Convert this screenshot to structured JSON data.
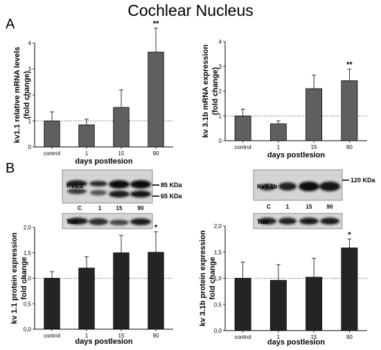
{
  "title": "Cochlear Nucleus",
  "panel_letters": {
    "a": "A",
    "b": "B"
  },
  "chart_data": [
    {
      "id": "kv11_mrna",
      "type": "bar",
      "categories": [
        "control",
        "1",
        "15",
        "90"
      ],
      "values": [
        1.0,
        0.85,
        1.52,
        3.65
      ],
      "error": [
        0.35,
        0.22,
        0.67,
        0.92
      ],
      "significance": [
        "",
        "",
        "",
        "**"
      ],
      "ylabel": [
        "kv1.1 relative mRNA levels",
        "(fold change)"
      ],
      "xlabel": "days postlesion",
      "ylim": [
        0,
        4
      ],
      "yticks": [
        "0",
        "1",
        "2",
        "3",
        "4"
      ],
      "reference_line": 1,
      "bar_color": "#5f5f5f"
    },
    {
      "id": "kv31b_mrna",
      "type": "bar",
      "categories": [
        "control",
        "1",
        "15",
        "90"
      ],
      "values": [
        1.0,
        0.68,
        2.1,
        2.42
      ],
      "error": [
        0.27,
        0.12,
        0.55,
        0.47
      ],
      "significance": [
        "",
        "",
        "",
        "**"
      ],
      "ylabel": [
        "kv 3.1b mRNA expression",
        "(fold change)"
      ],
      "xlabel": "days postlesion",
      "ylim": [
        0,
        4
      ],
      "yticks": [
        "0",
        "1",
        "2",
        "3",
        "4"
      ],
      "reference_line": 1,
      "bar_color": "#5f5f5f"
    },
    {
      "id": "kv11_protein",
      "type": "bar",
      "categories": [
        "control",
        "1",
        "15",
        "90"
      ],
      "values": [
        1.0,
        1.2,
        1.5,
        1.51
      ],
      "error": [
        0.13,
        0.22,
        0.34,
        0.4
      ],
      "significance": [
        "",
        "",
        "",
        "*"
      ],
      "ylabel": [
        "kv 1.1 protein expression",
        "fold change"
      ],
      "xlabel": "days postlesion",
      "ylim": [
        0,
        2
      ],
      "yticks": [
        "0,0",
        "0,5",
        "1,0",
        "1,5",
        "2,0"
      ],
      "reference_line": 1,
      "bar_color": "#242424"
    },
    {
      "id": "kv31b_protein",
      "type": "bar",
      "categories": [
        "control",
        "1",
        "15",
        "90"
      ],
      "values": [
        1.0,
        0.96,
        1.02,
        1.58
      ],
      "error": [
        0.31,
        0.3,
        0.36,
        0.17
      ],
      "significance": [
        "",
        "",
        "",
        "*"
      ],
      "ylabel": [
        "kv 3.1b protein expression",
        "fold change"
      ],
      "xlabel": "days postlesion",
      "ylim": [
        0,
        2
      ],
      "yticks": [
        "0,0",
        "0,5",
        "1,0",
        "1,5",
        "2,0"
      ],
      "reference_line": 1,
      "bar_color": "#242424"
    }
  ],
  "blots": {
    "left": {
      "protein_label": "Kv1.1",
      "marker_top": "85 KDa",
      "marker_bottom": "65 KDa",
      "lanes": [
        "C",
        "1",
        "15",
        "90"
      ],
      "loading_label": "Tub"
    },
    "right": {
      "protein_label": "Kv3.1b",
      "marker_top": "120 KDa",
      "lanes": [
        "C",
        "1",
        "15",
        "90"
      ],
      "loading_label": "Tub"
    }
  }
}
